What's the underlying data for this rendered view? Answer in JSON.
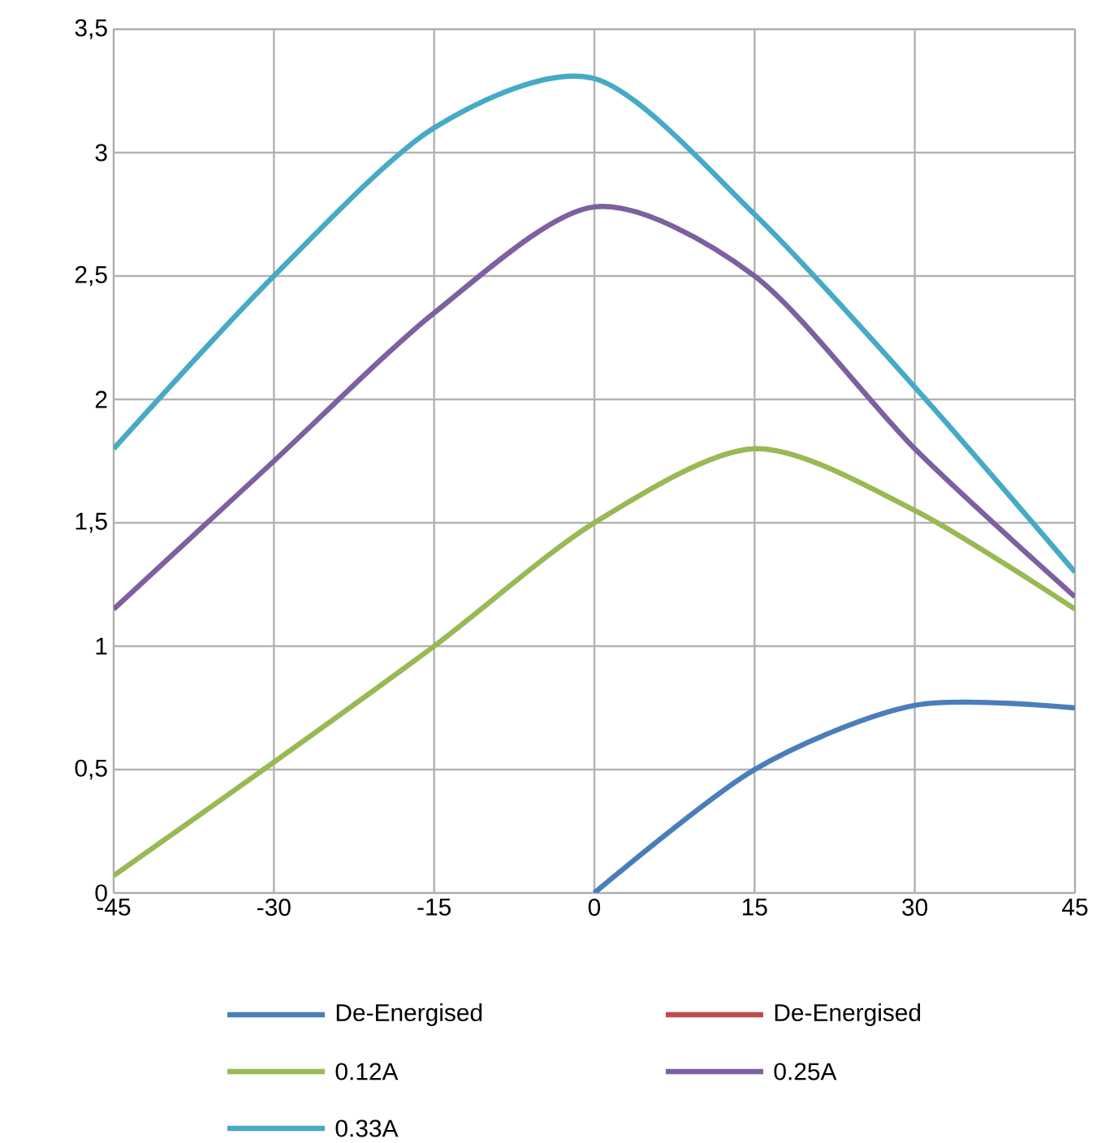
{
  "chart_data": {
    "type": "line",
    "x": [
      -45,
      -30,
      -15,
      0,
      15,
      30,
      45
    ],
    "series": [
      {
        "name": "De-Energised",
        "color": "#4a7ebb",
        "values": [
          null,
          null,
          null,
          0,
          0.5,
          0.76,
          0.75
        ]
      },
      {
        "name": "De-Energised",
        "color": "#be4b48",
        "values": [
          null,
          null,
          null,
          null,
          null,
          null,
          null
        ]
      },
      {
        "name": "0.12A",
        "color": "#98b954",
        "values": [
          0.07,
          0.53,
          1.0,
          1.5,
          1.8,
          1.55,
          1.15
        ]
      },
      {
        "name": "0.25A",
        "color": "#7d60a0",
        "values": [
          1.15,
          1.75,
          2.35,
          2.78,
          2.5,
          1.8,
          1.2
        ]
      },
      {
        "name": "0.33A",
        "color": "#46aac5",
        "values": [
          1.8,
          2.5,
          3.1,
          3.3,
          2.75,
          2.05,
          1.3
        ]
      }
    ],
    "xlim": [
      -45,
      45
    ],
    "xticks": [
      -45,
      -30,
      -15,
      0,
      15,
      30,
      45
    ],
    "ylim": [
      0,
      3.5
    ],
    "yticks": [
      0,
      {
        "value": 0.5,
        "label": "0,5"
      },
      1,
      {
        "value": 1.5,
        "label": "1,5"
      },
      2,
      {
        "value": 2.5,
        "label": "2,5"
      },
      3,
      {
        "value": 3.5,
        "label": "3,5"
      }
    ],
    "grid": true,
    "legend": "bottom",
    "marker": "none",
    "line_style": "solid"
  }
}
